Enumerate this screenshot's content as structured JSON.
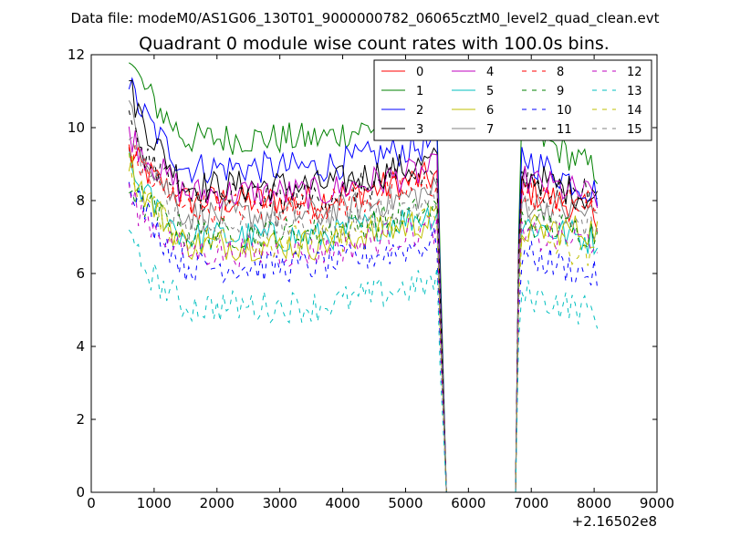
{
  "figure": {
    "suptitle": "Data file: modeM0/AS1G06_130T01_9000000782_06065cztM0_level2_quad_clean.evt"
  },
  "chart_data": {
    "type": "line",
    "title": "Quadrant 0 module wise count rates with 100.0s bins.",
    "xlabel": "",
    "ylabel": "",
    "x_offset_label": "+2.16502e8",
    "xlim": [
      0,
      9000
    ],
    "ylim": [
      0,
      12
    ],
    "xticks": [
      "0",
      "1000",
      "2000",
      "3000",
      "4000",
      "5000",
      "6000",
      "7000",
      "8000",
      "9000"
    ],
    "yticks": [
      "0",
      "2",
      "4",
      "6",
      "8",
      "10",
      "12"
    ],
    "grid": false,
    "legend": {
      "placement": "top-right",
      "columns": 4
    },
    "gap": [
      5650,
      6750
    ],
    "x_start": 600,
    "x_end": 8050,
    "series": [
      {
        "name": "0",
        "color": "#ff0000",
        "dashed": false,
        "start": 9.4,
        "level": 8.0,
        "end": 7.6
      },
      {
        "name": "1",
        "color": "#008000",
        "dashed": false,
        "start": 12.0,
        "level": 9.7,
        "end": 8.8
      },
      {
        "name": "2",
        "color": "#0000ff",
        "dashed": false,
        "start": 11.3,
        "level": 8.9,
        "end": 8.2
      },
      {
        "name": "3",
        "color": "#000000",
        "dashed": false,
        "start": 11.3,
        "level": 8.4,
        "end": 8.0
      },
      {
        "name": "4",
        "color": "#bf00bf",
        "dashed": false,
        "start": 10.0,
        "level": 8.2,
        "end": 8.1
      },
      {
        "name": "5",
        "color": "#00bfbf",
        "dashed": false,
        "start": 9.0,
        "level": 7.0,
        "end": 6.9
      },
      {
        "name": "6",
        "color": "#bfbf00",
        "dashed": false,
        "start": 9.2,
        "level": 6.8,
        "end": 7.2
      },
      {
        "name": "7",
        "color": "#808080",
        "dashed": false,
        "start": 10.6,
        "level": 7.6,
        "end": 7.6
      },
      {
        "name": "8",
        "color": "#ff0000",
        "dashed": true,
        "start": 9.5,
        "level": 7.8,
        "end": 7.8
      },
      {
        "name": "9",
        "color": "#008000",
        "dashed": true,
        "start": 8.5,
        "level": 7.1,
        "end": 7.1
      },
      {
        "name": "10",
        "color": "#0000ff",
        "dashed": true,
        "start": 8.8,
        "level": 6.2,
        "end": 5.9
      },
      {
        "name": "11",
        "color": "#000000",
        "dashed": true,
        "start": 10.2,
        "level": 8.1,
        "end": 8.2
      },
      {
        "name": "12",
        "color": "#bf00bf",
        "dashed": true,
        "start": 8.2,
        "level": 6.6,
        "end": 6.9
      },
      {
        "name": "13",
        "color": "#00bfbf",
        "dashed": true,
        "start": 6.9,
        "level": 5.1,
        "end": 4.9
      },
      {
        "name": "14",
        "color": "#bfbf00",
        "dashed": true,
        "start": 8.9,
        "level": 6.9,
        "end": 6.3
      },
      {
        "name": "15",
        "color": "#808080",
        "dashed": true,
        "start": 10.1,
        "level": 7.3,
        "end": 7.2
      }
    ]
  }
}
